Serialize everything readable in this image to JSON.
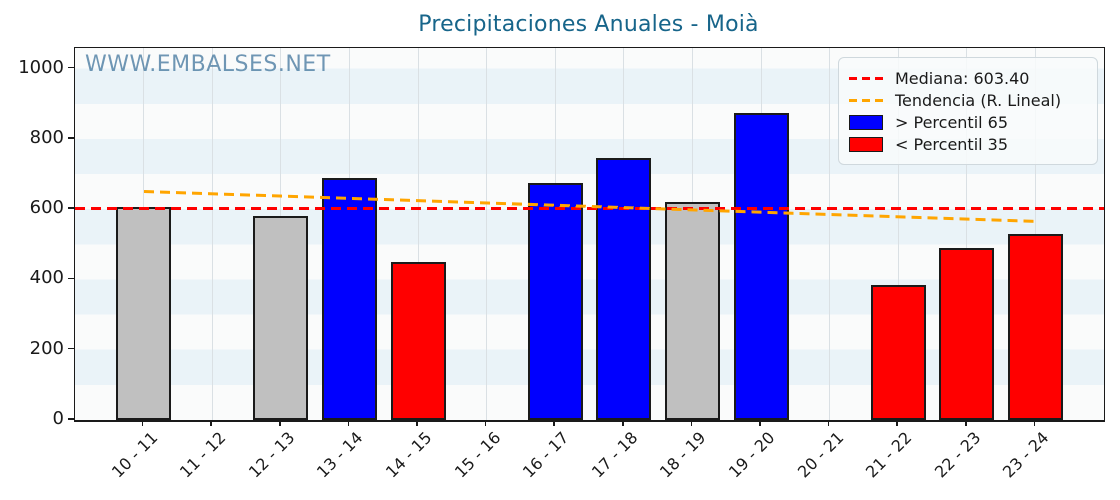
{
  "title": "Precipitaciones Anuales - Moià",
  "watermark": "WWW.EMBALSES.NET",
  "legend": {
    "median_label": "Mediana: 603.40",
    "trend_label": "Tendencia (R. Lineal)",
    "high_label": "> Percentil 65",
    "low_label": "< Percentil 35"
  },
  "colors": {
    "high": "#0000ff",
    "low": "#ff0000",
    "neutral": "#c0c0c0",
    "median_line": "#ff0000",
    "trend_line": "#ffa500",
    "bar_edge": "#1a1a1a",
    "title": "#17658a",
    "watermark": "#4d7ea3",
    "band_light": "#eaf3f8",
    "band_white": "#fafbfb",
    "gridline": "#dae0e4"
  },
  "chart_data": {
    "type": "bar",
    "title": "Precipitaciones Anuales - Moià",
    "xlabel": "",
    "ylabel": "",
    "categories": [
      "10 - 11",
      "11 - 12",
      "12 - 13",
      "13 - 14",
      "14 - 15",
      "15 - 16",
      "16 - 17",
      "17 - 18",
      "18 - 19",
      "19 - 20",
      "20 - 21",
      "21 - 22",
      "22 - 23",
      "23 - 24"
    ],
    "values": [
      605,
      0,
      580,
      690,
      450,
      0,
      675,
      745,
      620,
      875,
      0,
      385,
      490,
      530
    ],
    "bar_classes": [
      "neutral",
      "none",
      "neutral",
      "high",
      "low",
      "none",
      "high",
      "high",
      "neutral",
      "high",
      "none",
      "low",
      "low",
      "low"
    ],
    "median": 603.4,
    "trend_line": {
      "start_value": 650,
      "end_value": 565
    },
    "ylim": [
      0,
      1059
    ],
    "yticks": [
      0,
      200,
      400,
      600,
      800,
      1000
    ],
    "grid": "vertical-only",
    "background_bands": "alternating 100-unit horizontal stripes",
    "legend_position": "upper right"
  }
}
